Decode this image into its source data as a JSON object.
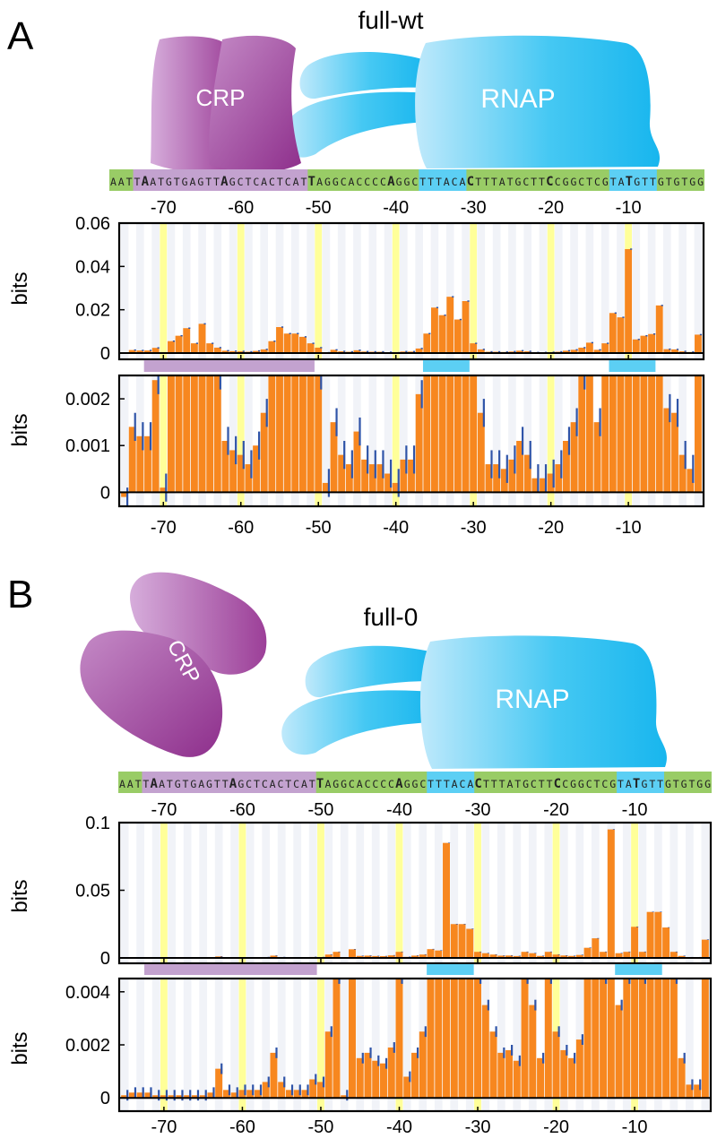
{
  "colors": {
    "crp_purple": "#a54fa4",
    "rnap_blue": "#27bff2",
    "bar_orange": "#f7871f",
    "error_blue": "#2f54a8",
    "highlight_yellow": "#ffff99",
    "seq_green": "#99cc66",
    "seq_purple": "#c3a2cf",
    "seq_blue": "#5ccff4"
  },
  "sequence": "AATTAATGTGAGTTAGCTCACTCATTAGGCACCCCAGGCTTTACACTTTATGCTTCCGGCTCGTATGTTGTGTGG",
  "sequence_start_position": -75,
  "sequence_bold_positions": [
    -71,
    -61,
    -50,
    -40,
    -30,
    -20,
    -10
  ],
  "sequence_regions": {
    "crp_site": [
      -72,
      -51
    ],
    "minus35_box": [
      -36,
      -31
    ],
    "minus10_box": [
      -12,
      -7
    ]
  },
  "highlighted_positions": [
    -70,
    -60,
    -50,
    -40,
    -30,
    -20,
    -10
  ],
  "protein_labels": {
    "crp": "CRP",
    "rnap": "RNAP"
  },
  "chart_data": [
    {
      "panel": "A",
      "title": "full-wt",
      "type": "bar",
      "x": [
        -75,
        -74,
        -73,
        -72,
        -71,
        -70,
        -69,
        -68,
        -67,
        -66,
        -65,
        -64,
        -63,
        -62,
        -61,
        -60,
        -59,
        -58,
        -57,
        -56,
        -55,
        -54,
        -53,
        -52,
        -51,
        -50,
        -49,
        -48,
        -47,
        -46,
        -45,
        -44,
        -43,
        -42,
        -41,
        -40,
        -39,
        -38,
        -37,
        -36,
        -35,
        -34,
        -33,
        -32,
        -31,
        -30,
        -29,
        -28,
        -27,
        -26,
        -25,
        -24,
        -23,
        -22,
        -21,
        -20,
        -19,
        -18,
        -17,
        -16,
        -15,
        -14,
        -13,
        -12,
        -11,
        -10,
        -9,
        -8,
        -7,
        -6,
        -5,
        -4,
        -3,
        -2,
        -1
      ],
      "top_axis": {
        "ylabel": "bits",
        "ylim": [
          0,
          0.06
        ],
        "yticks": [
          0,
          0.02,
          0.04,
          0.06
        ],
        "ytick_labels": [
          "0",
          "0.02",
          "0.04",
          "0.06"
        ]
      },
      "zoom_axis": {
        "ylabel": "bits",
        "ylim": [
          -0.0003,
          0.0025
        ],
        "yticks": [
          0,
          0.001,
          0.002
        ],
        "ytick_labels": [
          "0",
          "0.001",
          "0.002"
        ]
      },
      "xticks": [
        -70,
        -60,
        -50,
        -40,
        -30,
        -20,
        -10
      ],
      "xtick_labels": [
        "-70",
        "-60",
        "-50",
        "-40",
        "-30",
        "-20",
        "-10"
      ],
      "values": [
        -0.0001,
        0.0014,
        0.0012,
        0.0012,
        0.0024,
        0.0001,
        0.0055,
        0.008,
        0.0115,
        0.0045,
        0.0135,
        0.0045,
        0.0025,
        0.0011,
        0.0009,
        0.0008,
        0.0006,
        0.001,
        0.0017,
        0.0055,
        0.012,
        0.009,
        0.009,
        0.0075,
        0.0045,
        0.0025,
        0.0002,
        0.0015,
        0.0008,
        0.0006,
        0.0013,
        0.0007,
        0.0006,
        0.0006,
        0.0004,
        0.0002,
        0.0007,
        0.0007,
        0.0021,
        0.009,
        0.021,
        0.0175,
        0.026,
        0.0155,
        0.024,
        0.0045,
        0.0017,
        0.0006,
        0.0006,
        0.0005,
        0.0007,
        0.0011,
        0.0008,
        0.0003,
        0.0003,
        0.0004,
        0.0006,
        0.0011,
        0.0015,
        0.0025,
        0.0048,
        0.0015,
        0.0045,
        0.0185,
        0.0165,
        0.048,
        0.0063,
        0.008,
        0.0088,
        0.022,
        0.0018,
        0.0017,
        0.0008,
        0.0005,
        0.0085
      ],
      "errors": [
        0.0002,
        0.0003,
        0.0003,
        0.0003,
        0.0003,
        0.0003,
        0.0003,
        0.0003,
        0.0003,
        0.0003,
        0.0003,
        0.0003,
        0.0003,
        0.0003,
        0.0003,
        0.0003,
        0.0003,
        0.0003,
        0.0003,
        0.0003,
        0.0003,
        0.0003,
        0.0003,
        0.0003,
        0.0003,
        0.0003,
        0.0003,
        0.0003,
        0.0003,
        0.0003,
        0.0003,
        0.0003,
        0.0003,
        0.0003,
        0.0003,
        0.0003,
        0.0003,
        0.0003,
        0.0003,
        0.0003,
        0.0003,
        0.0003,
        0.0003,
        0.0003,
        0.0003,
        0.0003,
        0.0003,
        0.0003,
        0.0003,
        0.0003,
        0.0003,
        0.0003,
        0.0003,
        0.0003,
        0.0003,
        0.0003,
        0.0003,
        0.0003,
        0.0003,
        0.0003,
        0.0003,
        0.0003,
        0.0003,
        0.0003,
        0.0003,
        0.0003,
        0.0003,
        0.0003,
        0.0003,
        0.0003,
        0.0003,
        0.0003,
        0.0003,
        0.0003,
        0.0003
      ]
    },
    {
      "panel": "B",
      "title": "full-0",
      "type": "bar",
      "x": [
        -75,
        -74,
        -73,
        -72,
        -71,
        -70,
        -69,
        -68,
        -67,
        -66,
        -65,
        -64,
        -63,
        -62,
        -61,
        -60,
        -59,
        -58,
        -57,
        -56,
        -55,
        -54,
        -53,
        -52,
        -51,
        -50,
        -49,
        -48,
        -47,
        -46,
        -45,
        -44,
        -43,
        -42,
        -41,
        -40,
        -39,
        -38,
        -37,
        -36,
        -35,
        -34,
        -33,
        -32,
        -31,
        -30,
        -29,
        -28,
        -27,
        -26,
        -25,
        -24,
        -23,
        -22,
        -21,
        -20,
        -19,
        -18,
        -17,
        -16,
        -15,
        -14,
        -13,
        -12,
        -11,
        -10,
        -9,
        -8,
        -7,
        -6,
        -5,
        -4,
        -3,
        -2,
        -1
      ],
      "top_axis": {
        "ylabel": "bits",
        "ylim": [
          0,
          0.1
        ],
        "yticks": [
          0,
          0.05,
          0.1
        ],
        "ytick_labels": [
          "0",
          "0.05",
          "0.1"
        ]
      },
      "zoom_axis": {
        "ylabel": "bits",
        "ylim": [
          -0.0005,
          0.0045
        ],
        "yticks": [
          0,
          0.002,
          0.004
        ],
        "ytick_labels": [
          "0",
          "0.002",
          "0.004"
        ]
      },
      "xticks": [
        -70,
        -60,
        -50,
        -40,
        -30,
        -20,
        -10
      ],
      "xtick_labels": [
        "-70",
        "-60",
        "-50",
        "-40",
        "-30",
        "-20",
        "-10"
      ],
      "values": [
        0.0001,
        0.0002,
        0.0002,
        0.0002,
        0.0001,
        0.0001,
        0.0001,
        0.0001,
        0.0001,
        0.0001,
        0.0001,
        0.0002,
        0.0011,
        0.0003,
        0.0002,
        0.0003,
        0.0003,
        0.0003,
        0.0006,
        0.0017,
        0.0006,
        0.0003,
        0.0003,
        0.0003,
        0.0007,
        0.0006,
        0.0025,
        0.0045,
        0.0001,
        0.0064,
        0.0015,
        0.0017,
        0.0014,
        0.0013,
        0.0019,
        0.0045,
        0.0008,
        0.0017,
        0.0025,
        0.0065,
        0.0055,
        0.085,
        0.025,
        0.025,
        0.0215,
        0.0045,
        0.0035,
        0.0025,
        0.0017,
        0.0018,
        0.0014,
        0.0045,
        0.0035,
        0.0015,
        0.0045,
        0.0025,
        0.0018,
        0.0015,
        0.0022,
        0.0075,
        0.0145,
        0.0045,
        0.095,
        0.0035,
        0.0045,
        0.023,
        0.0045,
        0.034,
        0.034,
        0.0225,
        0.0045,
        0.0015,
        0.0005,
        0.0005,
        0.0135
      ],
      "errors": [
        0.0002,
        0.0002,
        0.0002,
        0.0002,
        0.0002,
        0.0002,
        0.0002,
        0.0002,
        0.0002,
        0.0002,
        0.0002,
        0.0002,
        0.0002,
        0.0002,
        0.0002,
        0.0002,
        0.0002,
        0.0002,
        0.0002,
        0.0002,
        0.0002,
        0.0002,
        0.0002,
        0.0002,
        0.0002,
        0.0002,
        0.0002,
        0.0002,
        0.0002,
        0.0002,
        0.0002,
        0.0002,
        0.0002,
        0.0002,
        0.0002,
        0.0002,
        0.0002,
        0.0002,
        0.0002,
        0.0002,
        0.0002,
        0.0002,
        0.0002,
        0.0002,
        0.0002,
        0.0002,
        0.0002,
        0.0002,
        0.0002,
        0.0002,
        0.0002,
        0.0002,
        0.0002,
        0.0002,
        0.0002,
        0.0002,
        0.0002,
        0.0002,
        0.0002,
        0.0002,
        0.0002,
        0.0002,
        0.0002,
        0.0002,
        0.0002,
        0.0002,
        0.0002,
        0.0002,
        0.0002,
        0.0002,
        0.0002,
        0.0002,
        0.0002,
        0.0002,
        0.0002
      ]
    }
  ]
}
